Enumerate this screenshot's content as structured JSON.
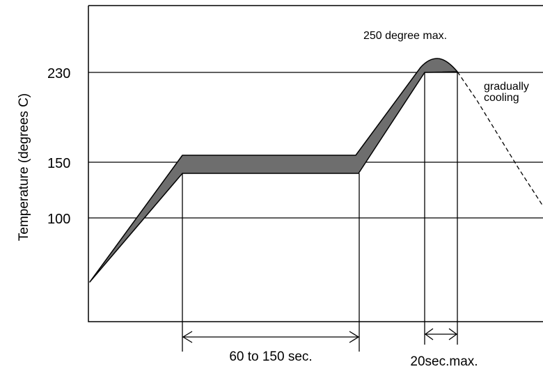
{
  "chart_data": {
    "type": "area",
    "title": "",
    "xlabel": "",
    "ylabel": "Temperature (degrees C)",
    "ytick_labels": [
      "230",
      "150",
      "100"
    ],
    "y_levels": [
      230,
      150,
      100
    ],
    "upper_profile": {
      "temperature": [
        50,
        150,
        150,
        236,
        240,
        236,
        230
      ]
    },
    "lower_profile": {
      "temperature": [
        50,
        140,
        140,
        230,
        230
      ]
    },
    "cooling_label": [
      "gradually",
      "cooling"
    ],
    "peak_label": "250 degree max.",
    "preheat_label": "60 to 150 sec.",
    "peak_time_label": "20sec.max.",
    "grid": "horizontal lines at 100, 150, 230",
    "fill_color": "#6e6e6e"
  }
}
